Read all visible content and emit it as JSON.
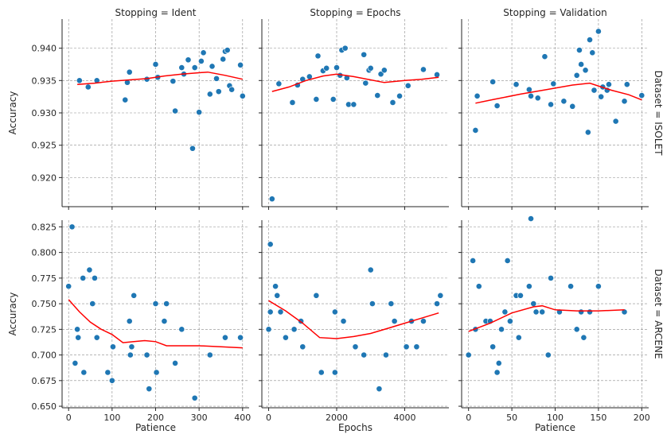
{
  "chart_data": {
    "type": "scatter",
    "layout": "faceted-grid-2x3",
    "grid": true,
    "trend_color": "#ff0000",
    "point_color": "#1f77b4",
    "panels": [
      {
        "col": 0,
        "row": 0,
        "col_title": "Stopping = Ident",
        "row_title": "Dataset = ISOLET",
        "xlabel": "",
        "ylabel": "Accuracy",
        "xlim": [
          -15,
          415
        ],
        "ylim": [
          0.9155,
          0.9445
        ],
        "xticks": [],
        "yticks": [
          0.92,
          0.925,
          0.93,
          0.935,
          0.94
        ],
        "ytick_labels": [
          "0.920",
          "0.925",
          "0.930",
          "0.935",
          "0.940"
        ],
        "points": [
          [
            25,
            0.935
          ],
          [
            45,
            0.934
          ],
          [
            65,
            0.935
          ],
          [
            130,
            0.932
          ],
          [
            135,
            0.9347
          ],
          [
            140,
            0.9363
          ],
          [
            180,
            0.9352
          ],
          [
            200,
            0.9375
          ],
          [
            205,
            0.9355
          ],
          [
            240,
            0.9349
          ],
          [
            245,
            0.9303
          ],
          [
            260,
            0.937
          ],
          [
            265,
            0.936
          ],
          [
            275,
            0.9382
          ],
          [
            285,
            0.9245
          ],
          [
            290,
            0.937
          ],
          [
            300,
            0.9301
          ],
          [
            305,
            0.938
          ],
          [
            310,
            0.9393
          ],
          [
            325,
            0.9329
          ],
          [
            330,
            0.9372
          ],
          [
            340,
            0.9353
          ],
          [
            345,
            0.9333
          ],
          [
            355,
            0.9383
          ],
          [
            360,
            0.9395
          ],
          [
            365,
            0.9397
          ],
          [
            370,
            0.9342
          ],
          [
            375,
            0.9336
          ],
          [
            395,
            0.9374
          ],
          [
            400,
            0.9326
          ]
        ],
        "trend": [
          [
            20,
            0.9344
          ],
          [
            60,
            0.9346
          ],
          [
            100,
            0.9349
          ],
          [
            140,
            0.9351
          ],
          [
            180,
            0.9353
          ],
          [
            220,
            0.9357
          ],
          [
            260,
            0.936
          ],
          [
            300,
            0.9362
          ],
          [
            320,
            0.9363
          ],
          [
            360,
            0.9358
          ],
          [
            400,
            0.9352
          ]
        ]
      },
      {
        "col": 1,
        "row": 0,
        "col_title": "Stopping = Epochs",
        "row_title": "Dataset = ISOLET",
        "xlabel": "",
        "ylabel": "",
        "xlim": [
          -200,
          5300
        ],
        "ylim": [
          0.9155,
          0.9445
        ],
        "xticks": [],
        "yticks": [],
        "points": [
          [
            100,
            0.9167
          ],
          [
            300,
            0.9345
          ],
          [
            700,
            0.9316
          ],
          [
            850,
            0.9343
          ],
          [
            1000,
            0.9352
          ],
          [
            1200,
            0.9356
          ],
          [
            1400,
            0.9321
          ],
          [
            1450,
            0.9388
          ],
          [
            1600,
            0.9365
          ],
          [
            1700,
            0.9369
          ],
          [
            1900,
            0.9321
          ],
          [
            2000,
            0.937
          ],
          [
            2100,
            0.9358
          ],
          [
            2150,
            0.9397
          ],
          [
            2250,
            0.94
          ],
          [
            2300,
            0.9354
          ],
          [
            2350,
            0.9313
          ],
          [
            2500,
            0.9313
          ],
          [
            2800,
            0.939
          ],
          [
            2850,
            0.9346
          ],
          [
            2950,
            0.9366
          ],
          [
            3000,
            0.9369
          ],
          [
            3200,
            0.9327
          ],
          [
            3300,
            0.936
          ],
          [
            3400,
            0.9366
          ],
          [
            3650,
            0.9316
          ],
          [
            3850,
            0.9326
          ],
          [
            4100,
            0.9342
          ],
          [
            4550,
            0.9367
          ],
          [
            4950,
            0.9359
          ]
        ],
        "trend": [
          [
            100,
            0.9333
          ],
          [
            600,
            0.934
          ],
          [
            1100,
            0.935
          ],
          [
            1600,
            0.9357
          ],
          [
            2000,
            0.936
          ],
          [
            2500,
            0.9356
          ],
          [
            3000,
            0.9351
          ],
          [
            3400,
            0.9347
          ],
          [
            4000,
            0.935
          ],
          [
            4500,
            0.9352
          ],
          [
            5000,
            0.9355
          ]
        ]
      },
      {
        "col": 2,
        "row": 0,
        "col_title": "Stopping = Validation",
        "row_title": "Dataset = ISOLET",
        "xlabel": "",
        "ylabel": "",
        "xlim": [
          -8,
          208
        ],
        "ylim": [
          0.9155,
          0.9445
        ],
        "xticks": [],
        "yticks": [],
        "points": [
          [
            8,
            0.9273
          ],
          [
            10,
            0.9326
          ],
          [
            28,
            0.9348
          ],
          [
            33,
            0.9311
          ],
          [
            55,
            0.9344
          ],
          [
            70,
            0.9336
          ],
          [
            72,
            0.9326
          ],
          [
            80,
            0.9323
          ],
          [
            88,
            0.9387
          ],
          [
            95,
            0.9313
          ],
          [
            98,
            0.9345
          ],
          [
            110,
            0.9318
          ],
          [
            120,
            0.931
          ],
          [
            125,
            0.9358
          ],
          [
            128,
            0.9397
          ],
          [
            130,
            0.9375
          ],
          [
            135,
            0.9366
          ],
          [
            138,
            0.927
          ],
          [
            140,
            0.9413
          ],
          [
            143,
            0.9393
          ],
          [
            145,
            0.9335
          ],
          [
            150,
            0.9426
          ],
          [
            153,
            0.9325
          ],
          [
            155,
            0.934
          ],
          [
            160,
            0.9335
          ],
          [
            162,
            0.9344
          ],
          [
            170,
            0.9287
          ],
          [
            180,
            0.9318
          ],
          [
            183,
            0.9344
          ],
          [
            200,
            0.9327
          ]
        ],
        "trend": [
          [
            8,
            0.9315
          ],
          [
            30,
            0.9321
          ],
          [
            60,
            0.9329
          ],
          [
            90,
            0.9336
          ],
          [
            120,
            0.9343
          ],
          [
            140,
            0.9346
          ],
          [
            165,
            0.9335
          ],
          [
            185,
            0.9328
          ],
          [
            200,
            0.932
          ]
        ]
      },
      {
        "col": 0,
        "row": 1,
        "col_title": "",
        "row_title": "Dataset = ARCENE",
        "xlabel": "Patience",
        "ylabel": "Accuracy",
        "xlim": [
          -15,
          415
        ],
        "ylim": [
          0.6485,
          0.8315
        ],
        "xticks": [
          0,
          100,
          200,
          300,
          400
        ],
        "xtick_labels": [
          "0",
          "100",
          "200",
          "300",
          "400"
        ],
        "yticks": [
          0.65,
          0.675,
          0.7,
          0.725,
          0.75,
          0.775,
          0.8,
          0.825
        ],
        "ytick_labels": [
          "0.650",
          "0.675",
          "0.700",
          "0.725",
          "0.750",
          "0.775",
          "0.800",
          "0.825"
        ],
        "points": [
          [
            0,
            0.767
          ],
          [
            8,
            0.825
          ],
          [
            15,
            0.692
          ],
          [
            20,
            0.725
          ],
          [
            22,
            0.717
          ],
          [
            33,
            0.775
          ],
          [
            35,
            0.683
          ],
          [
            48,
            0.783
          ],
          [
            55,
            0.75
          ],
          [
            60,
            0.775
          ],
          [
            65,
            0.717
          ],
          [
            90,
            0.683
          ],
          [
            100,
            0.675
          ],
          [
            102,
            0.708
          ],
          [
            140,
            0.733
          ],
          [
            142,
            0.7
          ],
          [
            145,
            0.708
          ],
          [
            150,
            0.758
          ],
          [
            180,
            0.7
          ],
          [
            185,
            0.667
          ],
          [
            200,
            0.75
          ],
          [
            202,
            0.683
          ],
          [
            220,
            0.733
          ],
          [
            225,
            0.75
          ],
          [
            245,
            0.692
          ],
          [
            260,
            0.725
          ],
          [
            290,
            0.658
          ],
          [
            325,
            0.7
          ],
          [
            360,
            0.717
          ],
          [
            395,
            0.717
          ]
        ],
        "trend": [
          [
            0,
            0.754
          ],
          [
            25,
            0.742
          ],
          [
            50,
            0.732
          ],
          [
            75,
            0.725
          ],
          [
            100,
            0.72
          ],
          [
            125,
            0.712
          ],
          [
            150,
            0.713
          ],
          [
            175,
            0.714
          ],
          [
            200,
            0.713
          ],
          [
            225,
            0.709
          ],
          [
            250,
            0.709
          ],
          [
            300,
            0.709
          ],
          [
            350,
            0.708
          ],
          [
            400,
            0.707
          ]
        ]
      },
      {
        "col": 1,
        "row": 1,
        "col_title": "",
        "row_title": "Dataset = ARCENE",
        "xlabel": "Epochs",
        "ylabel": "",
        "xlim": [
          -200,
          5300
        ],
        "ylim": [
          0.6485,
          0.8315
        ],
        "xticks": [
          0,
          2000,
          4000
        ],
        "xtick_labels": [
          "0",
          "2000",
          "4000"
        ],
        "yticks": [],
        "points": [
          [
            0,
            0.725
          ],
          [
            50,
            0.742
          ],
          [
            50,
            0.808
          ],
          [
            200,
            0.767
          ],
          [
            250,
            0.758
          ],
          [
            350,
            0.742
          ],
          [
            500,
            0.717
          ],
          [
            750,
            0.725
          ],
          [
            950,
            0.733
          ],
          [
            1000,
            0.708
          ],
          [
            1400,
            0.758
          ],
          [
            1550,
            0.683
          ],
          [
            1950,
            0.683
          ],
          [
            1950,
            0.742
          ],
          [
            2200,
            0.733
          ],
          [
            2550,
            0.708
          ],
          [
            2800,
            0.7
          ],
          [
            3000,
            0.783
          ],
          [
            3050,
            0.75
          ],
          [
            3250,
            0.667
          ],
          [
            3450,
            0.7
          ],
          [
            3600,
            0.75
          ],
          [
            3700,
            0.733
          ],
          [
            4050,
            0.708
          ],
          [
            4200,
            0.733
          ],
          [
            4350,
            0.708
          ],
          [
            4550,
            0.733
          ],
          [
            4950,
            0.75
          ],
          [
            5050,
            0.758
          ]
        ],
        "trend": [
          [
            0,
            0.753
          ],
          [
            500,
            0.743
          ],
          [
            1000,
            0.731
          ],
          [
            1500,
            0.717
          ],
          [
            2000,
            0.716
          ],
          [
            2500,
            0.718
          ],
          [
            3000,
            0.721
          ],
          [
            3500,
            0.726
          ],
          [
            4000,
            0.731
          ],
          [
            4500,
            0.736
          ],
          [
            5000,
            0.741
          ]
        ]
      },
      {
        "col": 2,
        "row": 1,
        "col_title": "",
        "row_title": "Dataset = ARCENE",
        "xlabel": "Patience",
        "ylabel": "",
        "xlim": [
          -8,
          208
        ],
        "ylim": [
          0.6485,
          0.8315
        ],
        "xticks": [
          0,
          50,
          100,
          150,
          200
        ],
        "xtick_labels": [
          "0",
          "50",
          "100",
          "150",
          "200"
        ],
        "yticks": [],
        "points": [
          [
            0,
            0.7
          ],
          [
            5,
            0.792
          ],
          [
            8,
            0.725
          ],
          [
            12,
            0.767
          ],
          [
            20,
            0.733
          ],
          [
            25,
            0.733
          ],
          [
            28,
            0.708
          ],
          [
            33,
            0.683
          ],
          [
            35,
            0.692
          ],
          [
            38,
            0.725
          ],
          [
            42,
            0.742
          ],
          [
            45,
            0.792
          ],
          [
            48,
            0.733
          ],
          [
            55,
            0.758
          ],
          [
            58,
            0.717
          ],
          [
            60,
            0.758
          ],
          [
            70,
            0.767
          ],
          [
            72,
            0.833
          ],
          [
            75,
            0.75
          ],
          [
            78,
            0.742
          ],
          [
            85,
            0.742
          ],
          [
            92,
            0.7
          ],
          [
            95,
            0.775
          ],
          [
            105,
            0.742
          ],
          [
            118,
            0.767
          ],
          [
            125,
            0.725
          ],
          [
            130,
            0.742
          ],
          [
            133,
            0.717
          ],
          [
            140,
            0.742
          ],
          [
            150,
            0.767
          ],
          [
            180,
            0.742
          ]
        ],
        "trend": [
          [
            0,
            0.723
          ],
          [
            25,
            0.731
          ],
          [
            50,
            0.741
          ],
          [
            75,
            0.747
          ],
          [
            85,
            0.748
          ],
          [
            100,
            0.744
          ],
          [
            125,
            0.743
          ],
          [
            150,
            0.743
          ],
          [
            180,
            0.744
          ]
        ]
      }
    ]
  }
}
